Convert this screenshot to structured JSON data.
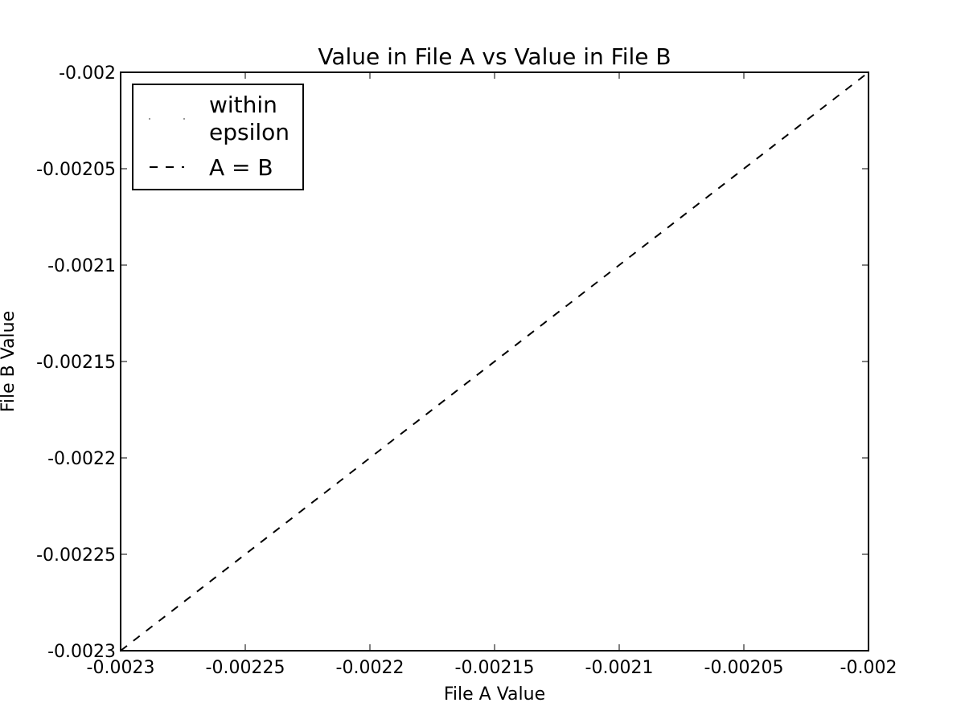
{
  "chart_data": {
    "type": "scatter",
    "title": "Value in File A vs Value in File B",
    "xlabel": "File A Value",
    "ylabel": "File B Value",
    "xlim": [
      -0.0023,
      -0.002
    ],
    "ylim": [
      -0.0023,
      -0.002
    ],
    "xticks": [
      -0.0023,
      -0.00225,
      -0.0022,
      -0.00215,
      -0.0021,
      -0.00205,
      -0.002
    ],
    "xtick_labels": [
      "-0.0023",
      "-0.00225",
      "-0.0022",
      "-0.00215",
      "-0.0021",
      "-0.00205",
      "-0.002"
    ],
    "yticks": [
      -0.0023,
      -0.00225,
      -0.0022,
      -0.00215,
      -0.0021,
      -0.00205,
      -0.002
    ],
    "ytick_labels": [
      "-0.0023",
      "-0.00225",
      "-0.0022",
      "-0.00215",
      "-0.0021",
      "-0.00205",
      "-0.002"
    ],
    "grid": false,
    "legend_position": "top-left",
    "series": [
      {
        "name": "within epsilon",
        "legend_lines": [
          "within",
          "epsilon"
        ],
        "kind": "scatter",
        "color": "#000000",
        "points": []
      },
      {
        "name": "A = B",
        "kind": "line",
        "style": "dashed",
        "color": "#000000",
        "x": [
          -0.0023,
          -0.002
        ],
        "y": [
          -0.0023,
          -0.002
        ]
      }
    ]
  }
}
